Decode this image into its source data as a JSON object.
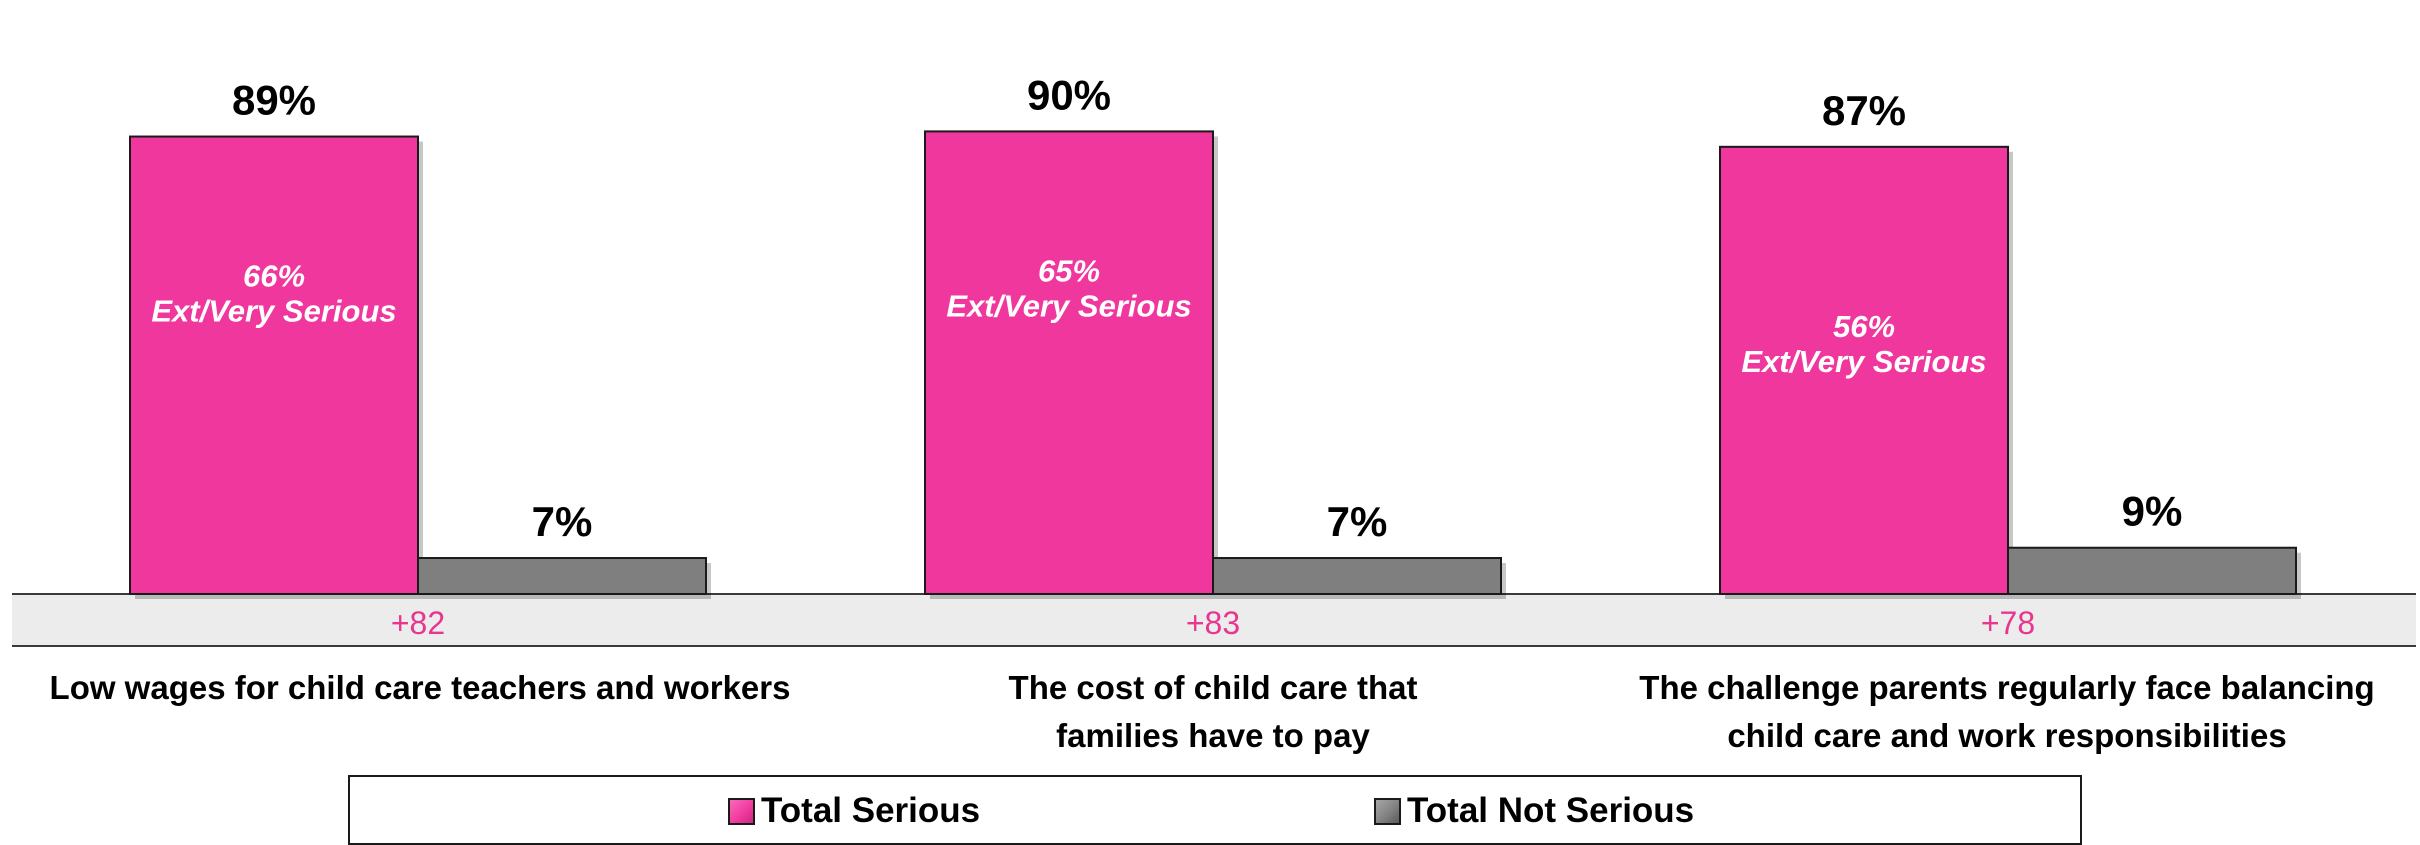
{
  "colors": {
    "serious": "#f0379e",
    "not_serious": "#7f7f7f",
    "net_text": "#e8368f",
    "band": "#ececec"
  },
  "chart_data": {
    "type": "bar",
    "categories": [
      [
        "Low wages for child care teachers and workers"
      ],
      [
        "The cost of child care that",
        "families have to pay"
      ],
      [
        "The challenge parents regularly face balancing",
        "child care and work responsibilities"
      ]
    ],
    "series": [
      {
        "name": "Total Serious",
        "values": [
          89,
          90,
          87
        ],
        "labels": [
          "89%",
          "90%",
          "87%"
        ]
      },
      {
        "name": "Total Not Serious",
        "values": [
          7,
          7,
          9
        ],
        "labels": [
          "7%",
          "7%",
          "9%"
        ]
      }
    ],
    "inner_labels": [
      [
        "66%",
        "Ext/Very Serious"
      ],
      [
        "65%",
        "Ext/Very Serious"
      ],
      [
        "56%",
        "Ext/Very Serious"
      ]
    ],
    "net_values": [
      "+82",
      "+83",
      "+78"
    ],
    "ylim": [
      0,
      100
    ],
    "legend_position": "bottom"
  }
}
